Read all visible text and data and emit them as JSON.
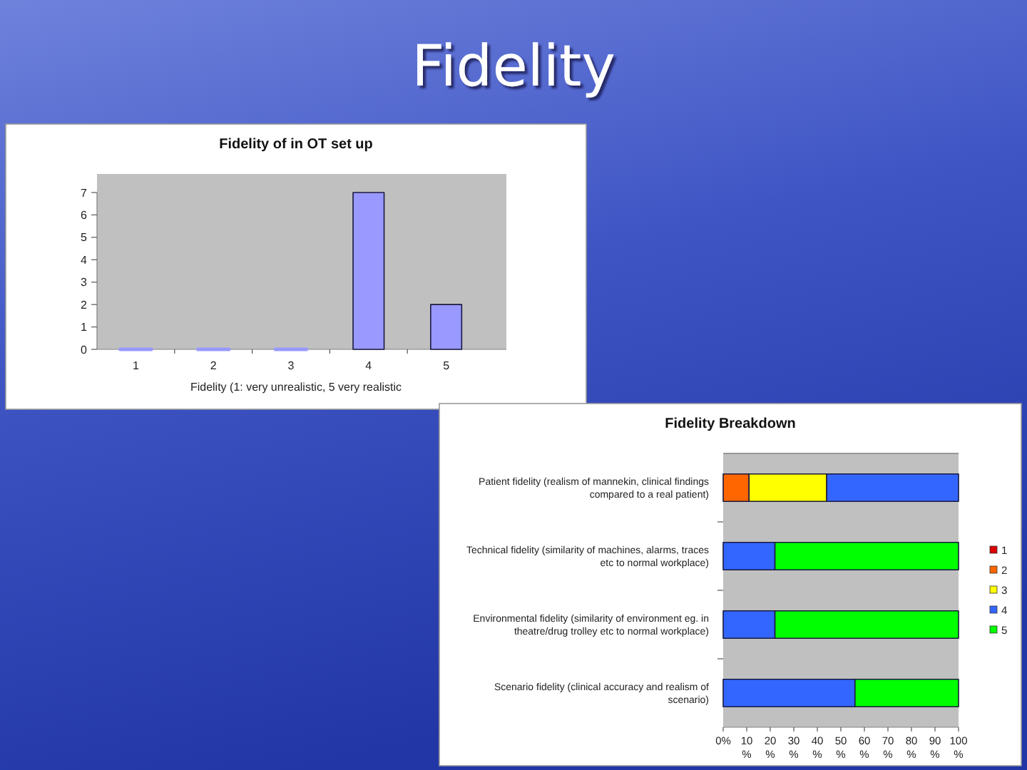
{
  "chart_data": [
    {
      "type": "other",
      "title": "Fidelity"
    },
    {
      "type": "bar",
      "title": "Fidelity of in OT set up",
      "xlabel": "Fidelity (1: very unrealistic, 5 very realistic",
      "categories": [
        "1",
        "2",
        "3",
        "4",
        "5"
      ],
      "values": [
        0,
        0,
        0,
        7,
        2
      ],
      "color": "#9999ff",
      "ylim": [
        0,
        7
      ],
      "yticks": [
        0,
        1,
        2,
        3,
        4,
        5,
        6,
        7
      ]
    },
    {
      "type": "bar",
      "orientation": "horizontal",
      "stacked": true,
      "title": "Fidelity Breakdown",
      "categories": [
        "Patient fidelity (realism of mannekin, clinical findings compared to a real patient)",
        "Technical fidelity (similarity of machines, alarms, traces etc to normal workplace)",
        "Environmental fidelity (similarity of environment eg. in theatre/drug trolley etc to normal workplace)",
        "Scenario fidelity (clinical accuracy and realism of scenario)"
      ],
      "series": [
        {
          "name": "1",
          "color": "#dd0000",
          "values": [
            null,
            null,
            null,
            null
          ]
        },
        {
          "name": "2",
          "color": "#ff6600",
          "values": [
            11,
            null,
            null,
            null
          ]
        },
        {
          "name": "3",
          "color": "#ffff00",
          "values": [
            33,
            null,
            null,
            null
          ]
        },
        {
          "name": "4",
          "color": "#3366ff",
          "values": [
            56,
            22,
            22,
            56
          ]
        },
        {
          "name": "5",
          "color": "#00ff00",
          "values": [
            null,
            78,
            78,
            44
          ]
        }
      ],
      "xlim": [
        0,
        100
      ],
      "xticks": [
        {
          "value": 0,
          "label": "0%"
        },
        {
          "value": 10,
          "label": "10%"
        },
        {
          "value": 20,
          "label": "20%"
        },
        {
          "value": 30,
          "label": "30%"
        },
        {
          "value": 40,
          "label": "40%"
        },
        {
          "value": 50,
          "label": "50%"
        },
        {
          "value": 60,
          "label": "60%"
        },
        {
          "value": 70,
          "label": "70%"
        },
        {
          "value": 80,
          "label": "80%"
        },
        {
          "value": 90,
          "label": "90%"
        },
        {
          "value": 100,
          "label": "100%"
        }
      ],
      "legend": "right"
    }
  ]
}
